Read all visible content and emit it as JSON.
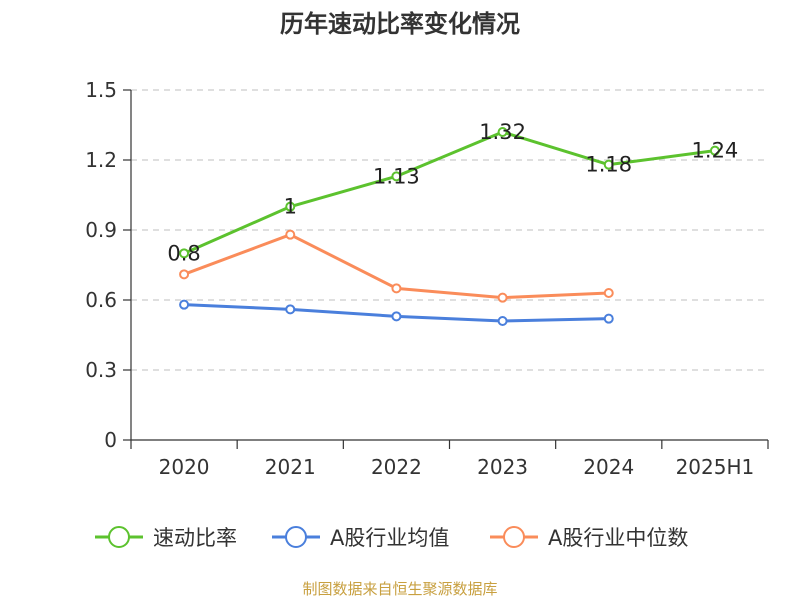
{
  "title": "历年速动比率变化情况",
  "source": "制图数据来自恒生聚源数据库",
  "chart_data": {
    "type": "line",
    "title": "历年速动比率变化情况",
    "xlabel": "",
    "ylabel": "",
    "ylim": [
      0,
      1.5
    ],
    "yticks": [
      "0",
      "0.3",
      "0.6",
      "0.9",
      "1.2",
      "1.5"
    ],
    "ytick_values": [
      0,
      0.3,
      0.6,
      0.9,
      1.2,
      1.5
    ],
    "categories": [
      "2020",
      "2021",
      "2022",
      "2023",
      "2024",
      "2025H1"
    ],
    "grid": "horizontal dashed",
    "legend_position": "bottom",
    "series": [
      {
        "name": "速动比率",
        "color": "#5cc22e",
        "values": [
          0.8,
          1.0,
          1.13,
          1.32,
          1.18,
          1.24
        ],
        "labels": [
          "0.8",
          "1",
          "1.13",
          "1.32",
          "1.18",
          "1.24"
        ],
        "show_labels": true
      },
      {
        "name": "A股行业均值",
        "color": "#4a7fdc",
        "values": [
          0.58,
          0.56,
          0.53,
          0.51,
          0.52,
          null
        ],
        "show_labels": false
      },
      {
        "name": "A股行业中位数",
        "color": "#fa8c5a",
        "values": [
          0.71,
          0.88,
          0.65,
          0.61,
          0.63,
          null
        ],
        "show_labels": false
      }
    ]
  }
}
